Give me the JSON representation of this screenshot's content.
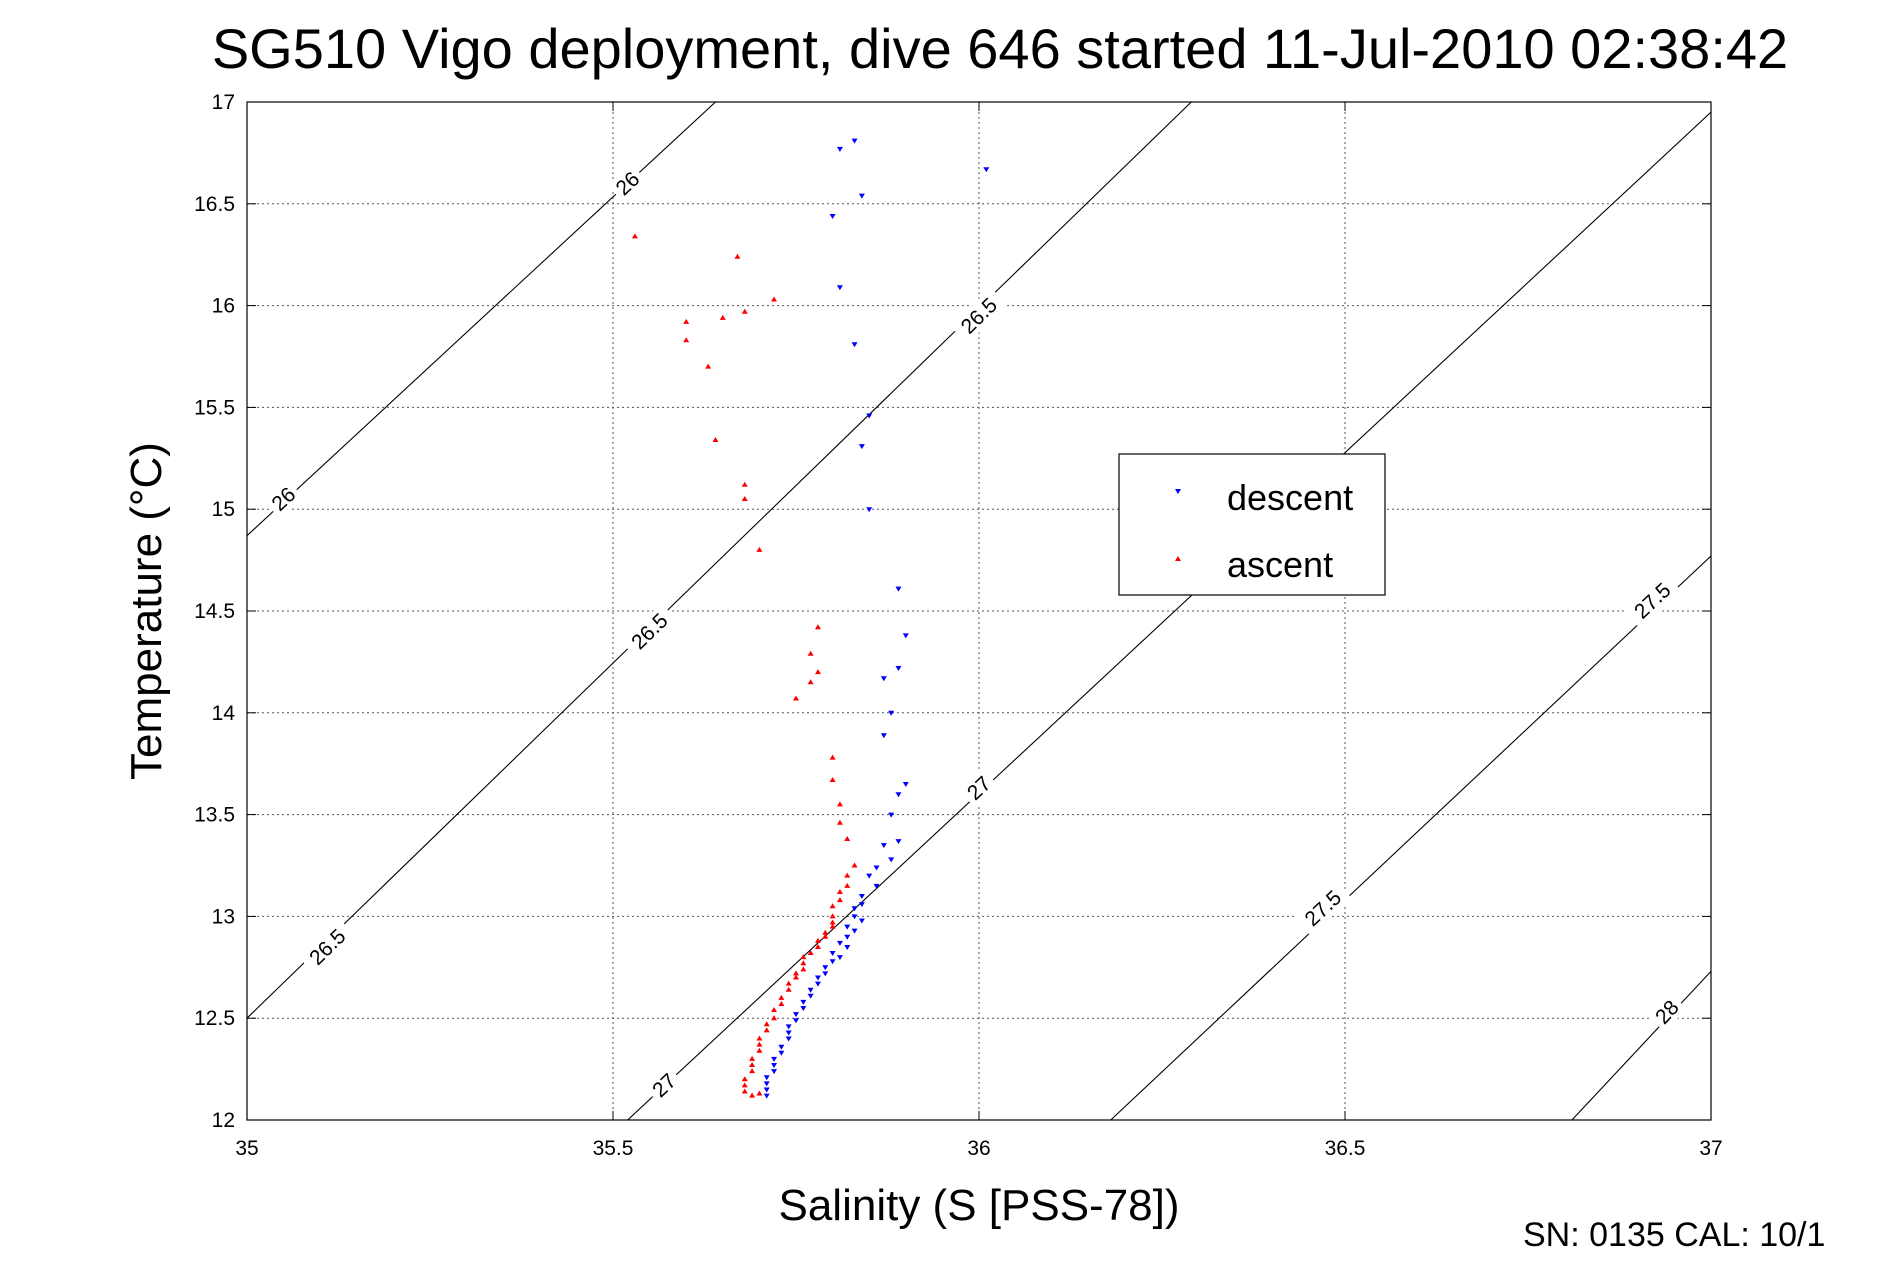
{
  "chart_data": {
    "type": "scatter",
    "title": "SG510 Vigo deployment, dive 646 started 11-Jul-2010 02:38:42",
    "xlabel": "Salinity (S [PSS-78])",
    "ylabel": "Temperature (°C)",
    "xlim": [
      35,
      37
    ],
    "ylim": [
      12,
      17
    ],
    "x_ticks": [
      "35",
      "35.5",
      "36",
      "36.5",
      "37"
    ],
    "y_ticks": [
      "12",
      "12.5",
      "13",
      "13.5",
      "14",
      "14.5",
      "15",
      "15.5",
      "16",
      "16.5",
      "17"
    ],
    "grid": true,
    "legend_position": "right-center",
    "series": [
      {
        "name": "descent",
        "color": "#0000ff",
        "marker": "triangle-down",
        "points": [
          [
            35.83,
            16.81
          ],
          [
            35.81,
            16.77
          ],
          [
            36.01,
            16.67
          ],
          [
            35.84,
            16.54
          ],
          [
            35.8,
            16.44
          ],
          [
            35.81,
            16.09
          ],
          [
            35.83,
            15.81
          ],
          [
            35.85,
            15.46
          ],
          [
            35.84,
            15.31
          ],
          [
            35.85,
            15.0
          ],
          [
            35.89,
            14.61
          ],
          [
            35.9,
            14.38
          ],
          [
            35.89,
            14.22
          ],
          [
            35.87,
            14.17
          ],
          [
            35.88,
            14.0
          ],
          [
            35.87,
            13.89
          ],
          [
            35.9,
            13.65
          ],
          [
            35.89,
            13.6
          ],
          [
            35.88,
            13.5
          ],
          [
            35.89,
            13.37
          ],
          [
            35.87,
            13.35
          ],
          [
            35.88,
            13.28
          ],
          [
            35.86,
            13.24
          ],
          [
            35.85,
            13.2
          ],
          [
            35.86,
            13.15
          ],
          [
            35.84,
            13.1
          ],
          [
            35.84,
            13.06
          ],
          [
            35.83,
            13.04
          ],
          [
            35.83,
            13.0
          ],
          [
            35.84,
            12.98
          ],
          [
            35.82,
            12.95
          ],
          [
            35.83,
            12.93
          ],
          [
            35.82,
            12.9
          ],
          [
            35.81,
            12.87
          ],
          [
            35.82,
            12.85
          ],
          [
            35.8,
            12.82
          ],
          [
            35.81,
            12.8
          ],
          [
            35.8,
            12.78
          ],
          [
            35.79,
            12.75
          ],
          [
            35.79,
            12.72
          ],
          [
            35.78,
            12.7
          ],
          [
            35.78,
            12.67
          ],
          [
            35.77,
            12.64
          ],
          [
            35.77,
            12.61
          ],
          [
            35.76,
            12.58
          ],
          [
            35.76,
            12.55
          ],
          [
            35.75,
            12.52
          ],
          [
            35.75,
            12.49
          ],
          [
            35.74,
            12.46
          ],
          [
            35.74,
            12.43
          ],
          [
            35.74,
            12.4
          ],
          [
            35.73,
            12.36
          ],
          [
            35.73,
            12.33
          ],
          [
            35.72,
            12.3
          ],
          [
            35.72,
            12.27
          ],
          [
            35.72,
            12.24
          ],
          [
            35.71,
            12.21
          ],
          [
            35.71,
            12.18
          ],
          [
            35.71,
            12.15
          ],
          [
            35.71,
            12.12
          ]
        ]
      },
      {
        "name": "ascent",
        "color": "#ff0000",
        "marker": "triangle-up",
        "points": [
          [
            35.53,
            16.34
          ],
          [
            35.67,
            16.24
          ],
          [
            35.72,
            16.03
          ],
          [
            35.68,
            15.97
          ],
          [
            35.65,
            15.94
          ],
          [
            35.6,
            15.92
          ],
          [
            35.6,
            15.83
          ],
          [
            35.63,
            15.7
          ],
          [
            35.64,
            15.34
          ],
          [
            35.68,
            15.12
          ],
          [
            35.68,
            15.05
          ],
          [
            35.7,
            14.8
          ],
          [
            35.78,
            14.42
          ],
          [
            35.77,
            14.29
          ],
          [
            35.78,
            14.2
          ],
          [
            35.77,
            14.15
          ],
          [
            35.75,
            14.07
          ],
          [
            35.8,
            13.78
          ],
          [
            35.8,
            13.67
          ],
          [
            35.81,
            13.55
          ],
          [
            35.81,
            13.46
          ],
          [
            35.82,
            13.38
          ],
          [
            35.83,
            13.25
          ],
          [
            35.82,
            13.2
          ],
          [
            35.82,
            13.15
          ],
          [
            35.81,
            13.12
          ],
          [
            35.81,
            13.08
          ],
          [
            35.8,
            13.05
          ],
          [
            35.8,
            13.0
          ],
          [
            35.8,
            12.97
          ],
          [
            35.8,
            12.95
          ],
          [
            35.79,
            12.92
          ],
          [
            35.79,
            12.9
          ],
          [
            35.78,
            12.88
          ],
          [
            35.78,
            12.85
          ],
          [
            35.77,
            12.82
          ],
          [
            35.76,
            12.8
          ],
          [
            35.76,
            12.77
          ],
          [
            35.76,
            12.74
          ],
          [
            35.75,
            12.72
          ],
          [
            35.75,
            12.7
          ],
          [
            35.74,
            12.67
          ],
          [
            35.74,
            12.64
          ],
          [
            35.73,
            12.6
          ],
          [
            35.73,
            12.57
          ],
          [
            35.72,
            12.54
          ],
          [
            35.72,
            12.5
          ],
          [
            35.71,
            12.47
          ],
          [
            35.71,
            12.44
          ],
          [
            35.7,
            12.4
          ],
          [
            35.7,
            12.37
          ],
          [
            35.7,
            12.34
          ],
          [
            35.69,
            12.3
          ],
          [
            35.69,
            12.27
          ],
          [
            35.69,
            12.24
          ],
          [
            35.68,
            12.2
          ],
          [
            35.68,
            12.17
          ],
          [
            35.68,
            12.14
          ],
          [
            35.69,
            12.12
          ],
          [
            35.7,
            12.13
          ]
        ]
      }
    ],
    "contours": [
      {
        "label": "26",
        "points": [
          [
            35.0,
            14.87
          ],
          [
            35.64,
            17.0
          ]
        ],
        "labels_at": [
          [
            35.05,
            15.05
          ],
          [
            35.52,
            16.6
          ]
        ]
      },
      {
        "label": "26.5",
        "points": [
          [
            35.0,
            12.5
          ],
          [
            36.29,
            17.0
          ]
        ],
        "labels_at": [
          [
            35.11,
            12.85
          ],
          [
            35.55,
            14.4
          ],
          [
            36.0,
            15.95
          ]
        ]
      },
      {
        "label": "27",
        "points": [
          [
            35.52,
            12.0
          ],
          [
            37.0,
            16.95
          ]
        ],
        "labels_at": [
          [
            35.57,
            12.17
          ],
          [
            36.0,
            13.63
          ],
          [
            36.47,
            15.2
          ]
        ]
      },
      {
        "label": "27.5",
        "points": [
          [
            36.18,
            12.0
          ],
          [
            37.0,
            14.77
          ]
        ],
        "labels_at": [
          [
            36.47,
            13.04
          ],
          [
            36.92,
            14.55
          ]
        ]
      },
      {
        "label": "28",
        "points": [
          [
            36.81,
            12.0
          ],
          [
            37.0,
            12.73
          ]
        ],
        "labels_at": [
          [
            36.94,
            12.53
          ]
        ]
      }
    ]
  },
  "legend": {
    "descent_label": "descent",
    "ascent_label": "ascent"
  },
  "footer": {
    "text": "SN: 0135  CAL: 10/1"
  }
}
